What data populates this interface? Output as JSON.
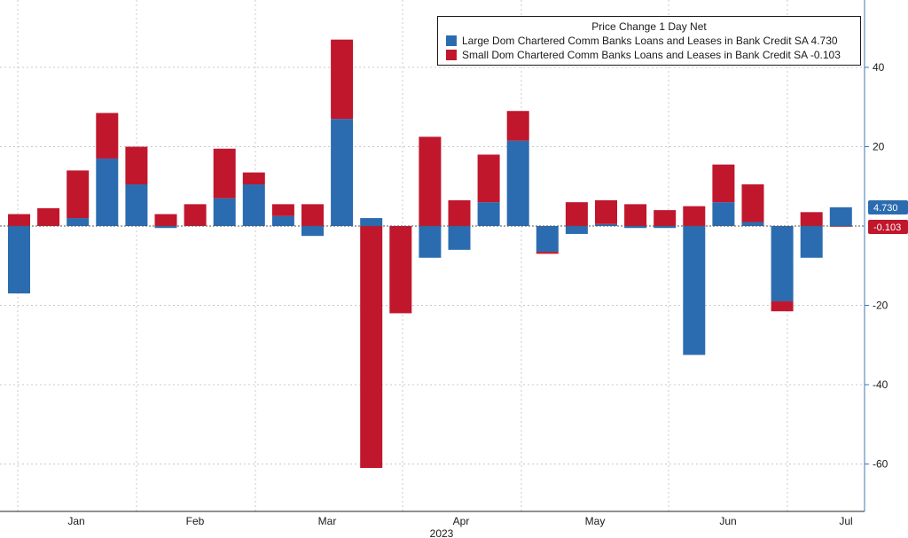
{
  "colors": {
    "large": "#2b6cb0",
    "small": "#c0172d",
    "axis": "#3b78b5",
    "grid": "#c9c9c9",
    "text": "#1a1a1a"
  },
  "legend": {
    "title": "Price Change 1 Day Net",
    "large_label": "Large Dom Chartered Comm Banks Loans and Leases in Bank Credit SA 4.730",
    "small_label": "Small Dom Chartered Comm Banks Loans and Leases in Bank Credit SA -0.103"
  },
  "badges": {
    "large": "4.730",
    "small": "-0.103"
  },
  "chart_data": {
    "type": "bar",
    "stacked": true,
    "year_label": "2023",
    "x_month_labels": [
      "Jan",
      "Feb",
      "Mar",
      "Apr",
      "May",
      "Jun",
      "Jul"
    ],
    "y_ticks": [
      "40",
      "20",
      "-20",
      "-40",
      "-60"
    ],
    "ylim": [
      -70,
      56
    ],
    "y_axis_side": "right",
    "grid": true,
    "legend_position": "top-right",
    "series": [
      {
        "name": "Large Dom Chartered Comm Banks Loans and Leases in Bank Credit SA",
        "values": [
          -17,
          0,
          2,
          17,
          10.5,
          -0.5,
          0,
          7,
          10.5,
          2.5,
          -2.5,
          27,
          2,
          0,
          -8,
          -6,
          6,
          21.5,
          -6.5,
          -2,
          0.5,
          -0.5,
          -0.5,
          -32.5,
          6,
          1,
          -19,
          -8,
          4.73
        ]
      },
      {
        "name": "Small Dom Chartered Comm Banks Loans and Leases in Bank Credit SA",
        "values": [
          3,
          4.5,
          12,
          11.5,
          9.5,
          3,
          5.5,
          12.5,
          3,
          3,
          5.5,
          20,
          -61,
          -22,
          22.5,
          6.5,
          12,
          7.5,
          -0.5,
          6,
          6,
          5.5,
          4,
          5,
          9.5,
          9.5,
          -2.5,
          3.5,
          -0.103
        ]
      }
    ]
  }
}
